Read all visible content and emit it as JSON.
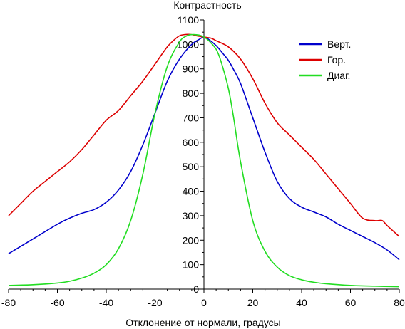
{
  "chart_data": {
    "type": "line",
    "title": "Контрастность",
    "xlabel": "Отклонение от нормали, градусы",
    "ylabel": "",
    "xlim": [
      -80,
      80
    ],
    "ylim": [
      0,
      1100
    ],
    "x_ticks": [
      "-80",
      "-60",
      "-40",
      "-20",
      "0",
      "20",
      "40",
      "60",
      "80"
    ],
    "y_ticks": [
      "0",
      "100",
      "200",
      "300",
      "400",
      "500",
      "600",
      "700",
      "800",
      "900",
      "1000",
      "1100"
    ],
    "grid": false,
    "legend_position": "top-right",
    "series": [
      {
        "name": "Верт.",
        "color": "#0000cc",
        "x": [
          -80,
          -70,
          -60,
          -55,
          -50,
          -45,
          -40,
          -35,
          -30,
          -25,
          -20,
          -15,
          -10,
          -5,
          -2,
          0,
          2,
          5,
          8,
          10,
          12,
          15,
          20,
          25,
          30,
          35,
          40,
          45,
          50,
          55,
          60,
          65,
          70,
          75,
          80
        ],
        "y": [
          145,
          205,
          265,
          290,
          310,
          325,
          355,
          405,
          480,
          590,
          720,
          850,
          940,
          1000,
          1020,
          1030,
          1020,
          995,
          960,
          935,
          900,
          840,
          700,
          560,
          440,
          370,
          335,
          315,
          295,
          265,
          240,
          215,
          190,
          160,
          120
        ]
      },
      {
        "name": "Гор.",
        "color": "#dd0000",
        "x": [
          -80,
          -75,
          -70,
          -65,
          -60,
          -55,
          -50,
          -45,
          -40,
          -35,
          -30,
          -25,
          -20,
          -15,
          -12,
          -10,
          -8,
          -5,
          -3,
          0,
          3,
          5,
          10,
          15,
          20,
          25,
          30,
          35,
          40,
          45,
          50,
          55,
          60,
          65,
          70,
          73,
          75,
          80
        ],
        "y": [
          300,
          350,
          400,
          440,
          480,
          520,
          570,
          630,
          690,
          730,
          790,
          850,
          920,
          990,
          1020,
          1035,
          1040,
          1040,
          1035,
          1030,
          1025,
          1015,
          990,
          940,
          860,
          760,
          680,
          630,
          580,
          530,
          470,
          410,
          350,
          290,
          280,
          280,
          260,
          215
        ]
      },
      {
        "name": "Диаг.",
        "color": "#22dd22",
        "x": [
          -80,
          -70,
          -60,
          -55,
          -50,
          -45,
          -40,
          -35,
          -30,
          -25,
          -20,
          -15,
          -10,
          -7,
          -5,
          -2,
          0,
          2,
          5,
          7,
          10,
          12,
          15,
          20,
          25,
          30,
          35,
          40,
          45,
          50,
          60,
          70,
          80
        ],
        "y": [
          15,
          18,
          25,
          32,
          45,
          65,
          100,
          165,
          280,
          470,
          720,
          910,
          1010,
          1035,
          1040,
          1038,
          1030,
          1015,
          980,
          930,
          820,
          710,
          520,
          280,
          155,
          90,
          55,
          38,
          28,
          22,
          15,
          12,
          10
        ]
      }
    ]
  }
}
